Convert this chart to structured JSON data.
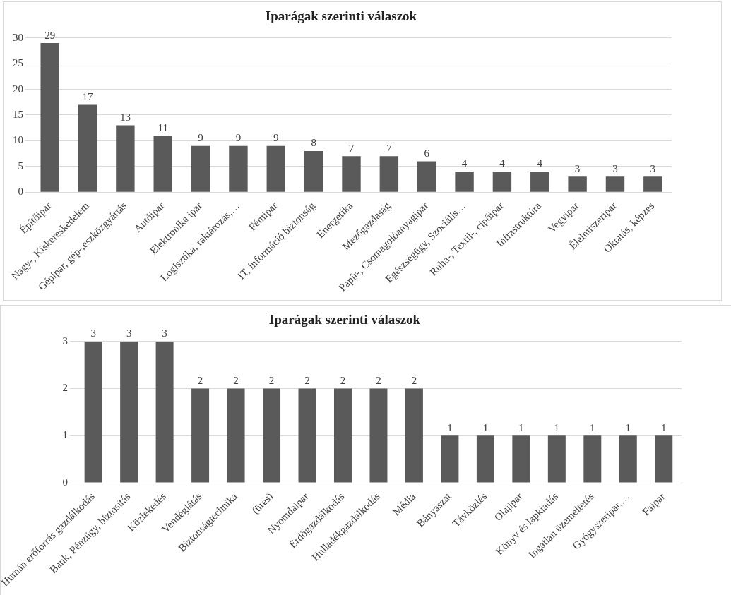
{
  "chart_data": [
    {
      "type": "bar",
      "title": "Iparágak szerinti válaszok",
      "categories": [
        "Építőipar",
        "Nagy-, Kiskereskedelem",
        "Gépipar, gép-,eszközgyártás",
        "Autóipar",
        "Elektronika ipar",
        "Logisztika, raktározás,…",
        "Fémipar",
        "IT, információ biztonság",
        "Energetika",
        "Mezőgazdaság",
        "Papír-, Csomagolóanyagipar",
        "Egészségügy, Szociális…",
        "Ruha-, Textil-, cipőipar",
        "Infrastruktúra",
        "Vegyipar",
        "Élelmiszeripar",
        "Oktatás, képzés"
      ],
      "values": [
        29,
        17,
        13,
        11,
        9,
        9,
        9,
        8,
        7,
        7,
        6,
        4,
        4,
        4,
        3,
        3,
        3
      ],
      "color": "#5a5a5a",
      "ylim": [
        0,
        30
      ],
      "yticks": [
        0,
        5,
        10,
        15,
        20,
        25,
        30
      ],
      "grid": "y",
      "data_labels": true
    },
    {
      "type": "bar",
      "title": "Iparágak szerinti válaszok",
      "categories": [
        "Humán erőforrás gazdálkodás",
        "Bank, Pénzügy, biztosítás",
        "Közlekedés",
        "Vendéglátás",
        "Biztonságtechnika",
        "(üres)",
        "Nyomdaipar",
        "Erdőgazdálkodás",
        "Hulladékgazdálkodás",
        "Média",
        "Bányászat",
        "Távközlés",
        "Olajipar",
        "Könyv és lapkiadás",
        "Ingatlan üzemeltetés",
        "Gyógyszeripar,…",
        "Faipar"
      ],
      "values": [
        3,
        3,
        3,
        2,
        2,
        2,
        2,
        2,
        2,
        2,
        1,
        1,
        1,
        1,
        1,
        1,
        1
      ],
      "color": "#5a5a5a",
      "ylim": [
        0,
        3
      ],
      "yticks": [
        0,
        1,
        2,
        3
      ],
      "grid": "y",
      "data_labels": true
    }
  ]
}
